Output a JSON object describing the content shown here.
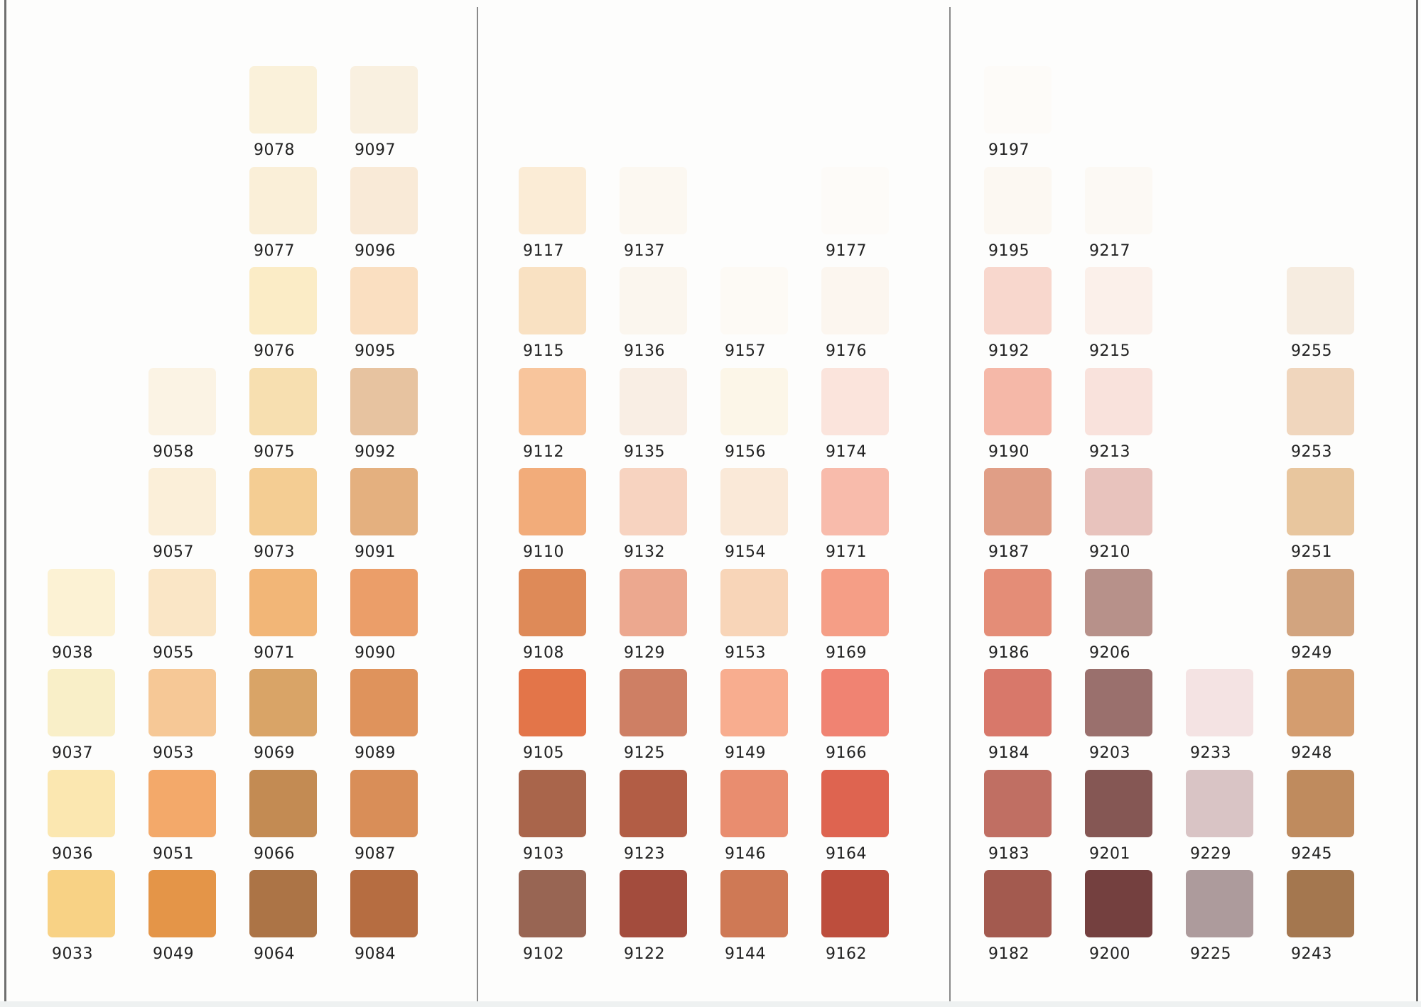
{
  "panels": [
    {
      "chips": [
        {
          "code": "9078",
          "color": "#faf1da",
          "col": 2,
          "row": 0
        },
        {
          "code": "9097",
          "color": "#f9f0e0",
          "col": 3,
          "row": 0
        },
        {
          "code": "9077",
          "color": "#faefd8",
          "col": 2,
          "row": 1
        },
        {
          "code": "9096",
          "color": "#f9ead7",
          "col": 3,
          "row": 1
        },
        {
          "code": "9076",
          "color": "#fbecc6",
          "col": 2,
          "row": 2
        },
        {
          "code": "9095",
          "color": "#fadfc1",
          "col": 3,
          "row": 2
        },
        {
          "code": "9058",
          "color": "#fbf3e4",
          "col": 1,
          "row": 3
        },
        {
          "code": "9075",
          "color": "#f7dfb0",
          "col": 2,
          "row": 3
        },
        {
          "code": "9092",
          "color": "#e7c3a0",
          "col": 3,
          "row": 3
        },
        {
          "code": "9057",
          "color": "#fbefd9",
          "col": 1,
          "row": 4
        },
        {
          "code": "9073",
          "color": "#f4cd93",
          "col": 2,
          "row": 4
        },
        {
          "code": "9091",
          "color": "#e4b07f",
          "col": 3,
          "row": 4
        },
        {
          "code": "9038",
          "color": "#fcf2d4",
          "col": 0,
          "row": 5
        },
        {
          "code": "9055",
          "color": "#fae6c6",
          "col": 1,
          "row": 5
        },
        {
          "code": "9071",
          "color": "#f2b677",
          "col": 2,
          "row": 5
        },
        {
          "code": "9090",
          "color": "#eb9e69",
          "col": 3,
          "row": 5
        },
        {
          "code": "9037",
          "color": "#f9efc8",
          "col": 0,
          "row": 6
        },
        {
          "code": "9053",
          "color": "#f6c896",
          "col": 1,
          "row": 6
        },
        {
          "code": "9069",
          "color": "#d9a467",
          "col": 2,
          "row": 6
        },
        {
          "code": "9089",
          "color": "#df935c",
          "col": 3,
          "row": 6
        },
        {
          "code": "9036",
          "color": "#fbe7b0",
          "col": 0,
          "row": 7
        },
        {
          "code": "9051",
          "color": "#f3a96a",
          "col": 1,
          "row": 7
        },
        {
          "code": "9066",
          "color": "#c38b53",
          "col": 2,
          "row": 7
        },
        {
          "code": "9087",
          "color": "#d98e58",
          "col": 3,
          "row": 7
        },
        {
          "code": "9033",
          "color": "#f8d285",
          "col": 0,
          "row": 8
        },
        {
          "code": "9049",
          "color": "#e49548",
          "col": 1,
          "row": 8
        },
        {
          "code": "9064",
          "color": "#ac7446",
          "col": 2,
          "row": 8
        },
        {
          "code": "9084",
          "color": "#b66d41",
          "col": 3,
          "row": 8
        }
      ]
    },
    {
      "chips": [
        {
          "code": "9117",
          "color": "#fbecd6",
          "col": 0,
          "row": 1
        },
        {
          "code": "9137",
          "color": "#fcf8f1",
          "col": 1,
          "row": 1
        },
        {
          "code": "9177",
          "color": "#fdfbf8",
          "col": 3,
          "row": 1
        },
        {
          "code": "9115",
          "color": "#f9e1c2",
          "col": 0,
          "row": 2
        },
        {
          "code": "9136",
          "color": "#fbf6ee",
          "col": 1,
          "row": 2
        },
        {
          "code": "9157",
          "color": "#fdfaf5",
          "col": 2,
          "row": 2
        },
        {
          "code": "9176",
          "color": "#fcf6ef",
          "col": 3,
          "row": 2
        },
        {
          "code": "9112",
          "color": "#f8c59c",
          "col": 0,
          "row": 3
        },
        {
          "code": "9135",
          "color": "#f9eee4",
          "col": 1,
          "row": 3
        },
        {
          "code": "9156",
          "color": "#fcf6e8",
          "col": 2,
          "row": 3
        },
        {
          "code": "9174",
          "color": "#fbe4dc",
          "col": 3,
          "row": 3
        },
        {
          "code": "9110",
          "color": "#f2ac7a",
          "col": 0,
          "row": 4
        },
        {
          "code": "9132",
          "color": "#f7d3c0",
          "col": 1,
          "row": 4
        },
        {
          "code": "9154",
          "color": "#fae9d8",
          "col": 2,
          "row": 4
        },
        {
          "code": "9171",
          "color": "#f8bbab",
          "col": 3,
          "row": 4
        },
        {
          "code": "9108",
          "color": "#de8a58",
          "col": 0,
          "row": 5
        },
        {
          "code": "9129",
          "color": "#eca88f",
          "col": 1,
          "row": 5
        },
        {
          "code": "9153",
          "color": "#f8d5b8",
          "col": 2,
          "row": 5
        },
        {
          "code": "9169",
          "color": "#f59e86",
          "col": 3,
          "row": 5
        },
        {
          "code": "9105",
          "color": "#e37549",
          "col": 0,
          "row": 6
        },
        {
          "code": "9125",
          "color": "#ce7f64",
          "col": 1,
          "row": 6
        },
        {
          "code": "9149",
          "color": "#f8ad8f",
          "col": 2,
          "row": 6
        },
        {
          "code": "9166",
          "color": "#f08372",
          "col": 3,
          "row": 6
        },
        {
          "code": "9103",
          "color": "#a9654b",
          "col": 0,
          "row": 7
        },
        {
          "code": "9123",
          "color": "#b25d45",
          "col": 1,
          "row": 7
        },
        {
          "code": "9146",
          "color": "#e98d6f",
          "col": 2,
          "row": 7
        },
        {
          "code": "9164",
          "color": "#de6450",
          "col": 3,
          "row": 7
        },
        {
          "code": "9102",
          "color": "#986553",
          "col": 0,
          "row": 8
        },
        {
          "code": "9122",
          "color": "#a34c3d",
          "col": 1,
          "row": 8
        },
        {
          "code": "9144",
          "color": "#cf7955",
          "col": 2,
          "row": 8
        },
        {
          "code": "9162",
          "color": "#bd4e3d",
          "col": 3,
          "row": 8
        }
      ]
    },
    {
      "chips": [
        {
          "code": "9197",
          "color": "#fdfbf8",
          "col": 0,
          "row": 0
        },
        {
          "code": "9195",
          "color": "#fcf8f2",
          "col": 0,
          "row": 1
        },
        {
          "code": "9217",
          "color": "#fcf9f4",
          "col": 1,
          "row": 1
        },
        {
          "code": "9192",
          "color": "#f8d7cd",
          "col": 0,
          "row": 2
        },
        {
          "code": "9215",
          "color": "#fbf0ea",
          "col": 1,
          "row": 2
        },
        {
          "code": "9255",
          "color": "#f6ece0",
          "col": 3,
          "row": 2
        },
        {
          "code": "9190",
          "color": "#f5b8a8",
          "col": 0,
          "row": 3
        },
        {
          "code": "9213",
          "color": "#f9e2dc",
          "col": 1,
          "row": 3
        },
        {
          "code": "9253",
          "color": "#f0d6bd",
          "col": 3,
          "row": 3
        },
        {
          "code": "9187",
          "color": "#e09e86",
          "col": 0,
          "row": 4
        },
        {
          "code": "9210",
          "color": "#e8c3bd",
          "col": 1,
          "row": 4
        },
        {
          "code": "9251",
          "color": "#e8c69e",
          "col": 3,
          "row": 4
        },
        {
          "code": "9186",
          "color": "#e48d77",
          "col": 0,
          "row": 5
        },
        {
          "code": "9206",
          "color": "#b7918a",
          "col": 1,
          "row": 5
        },
        {
          "code": "9249",
          "color": "#d2a47f",
          "col": 3,
          "row": 5
        },
        {
          "code": "9184",
          "color": "#d8786a",
          "col": 0,
          "row": 6
        },
        {
          "code": "9203",
          "color": "#9a706d",
          "col": 1,
          "row": 6
        },
        {
          "code": "9233",
          "color": "#f4e3e3",
          "col": 2,
          "row": 6
        },
        {
          "code": "9248",
          "color": "#d49d6f",
          "col": 3,
          "row": 6
        },
        {
          "code": "9183",
          "color": "#c06f63",
          "col": 0,
          "row": 7
        },
        {
          "code": "9201",
          "color": "#855754",
          "col": 1,
          "row": 7
        },
        {
          "code": "9229",
          "color": "#d9c4c5",
          "col": 2,
          "row": 7
        },
        {
          "code": "9245",
          "color": "#bf8b5e",
          "col": 3,
          "row": 7
        },
        {
          "code": "9182",
          "color": "#a35a4f",
          "col": 0,
          "row": 8
        },
        {
          "code": "9200",
          "color": "#74403f",
          "col": 1,
          "row": 8
        },
        {
          "code": "9225",
          "color": "#ad9b9c",
          "col": 2,
          "row": 8
        },
        {
          "code": "9243",
          "color": "#a4774f",
          "col": 3,
          "row": 8
        }
      ]
    }
  ]
}
